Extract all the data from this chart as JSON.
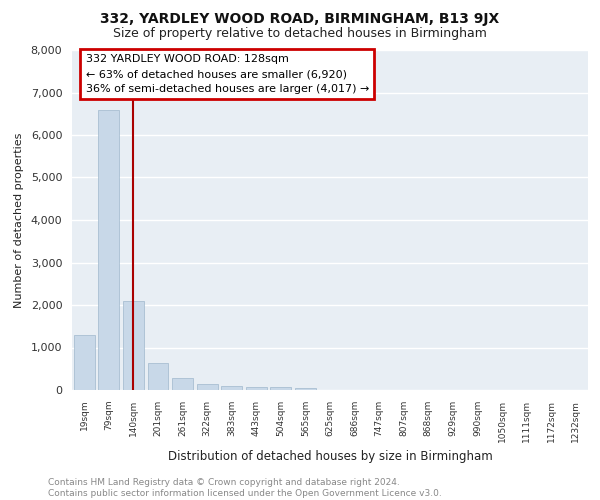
{
  "title1": "332, YARDLEY WOOD ROAD, BIRMINGHAM, B13 9JX",
  "title2": "Size of property relative to detached houses in Birmingham",
  "xlabel": "Distribution of detached houses by size in Birmingham",
  "ylabel": "Number of detached properties",
  "footnote": "Contains HM Land Registry data © Crown copyright and database right 2024.\nContains public sector information licensed under the Open Government Licence v3.0.",
  "categories": [
    "19sqm",
    "79sqm",
    "140sqm",
    "201sqm",
    "261sqm",
    "322sqm",
    "383sqm",
    "443sqm",
    "504sqm",
    "565sqm",
    "625sqm",
    "686sqm",
    "747sqm",
    "807sqm",
    "868sqm",
    "929sqm",
    "990sqm",
    "1050sqm",
    "1111sqm",
    "1172sqm",
    "1232sqm"
  ],
  "values": [
    1300,
    6600,
    2100,
    640,
    280,
    150,
    100,
    80,
    60,
    40,
    5,
    5,
    4,
    3,
    2,
    2,
    1,
    1,
    1,
    1,
    1
  ],
  "bar_color": "#c8d8e8",
  "bar_edge_color": "#a0b8cc",
  "vline_x": 2.0,
  "annotation_text": "332 YARDLEY WOOD ROAD: 128sqm\n← 63% of detached houses are smaller (6,920)\n36% of semi-detached houses are larger (4,017) →",
  "annotation_box_color": "#ffffff",
  "annotation_box_edge": "#cc0000",
  "vline_color": "#aa0000",
  "ylim": [
    0,
    8000
  ],
  "yticks": [
    0,
    1000,
    2000,
    3000,
    4000,
    5000,
    6000,
    7000,
    8000
  ],
  "background_color": "#e8eef4",
  "grid_color": "#ffffff",
  "title1_fontsize": 10,
  "title2_fontsize": 9,
  "footnote_fontsize": 6.5,
  "footnote_color": "#888888"
}
